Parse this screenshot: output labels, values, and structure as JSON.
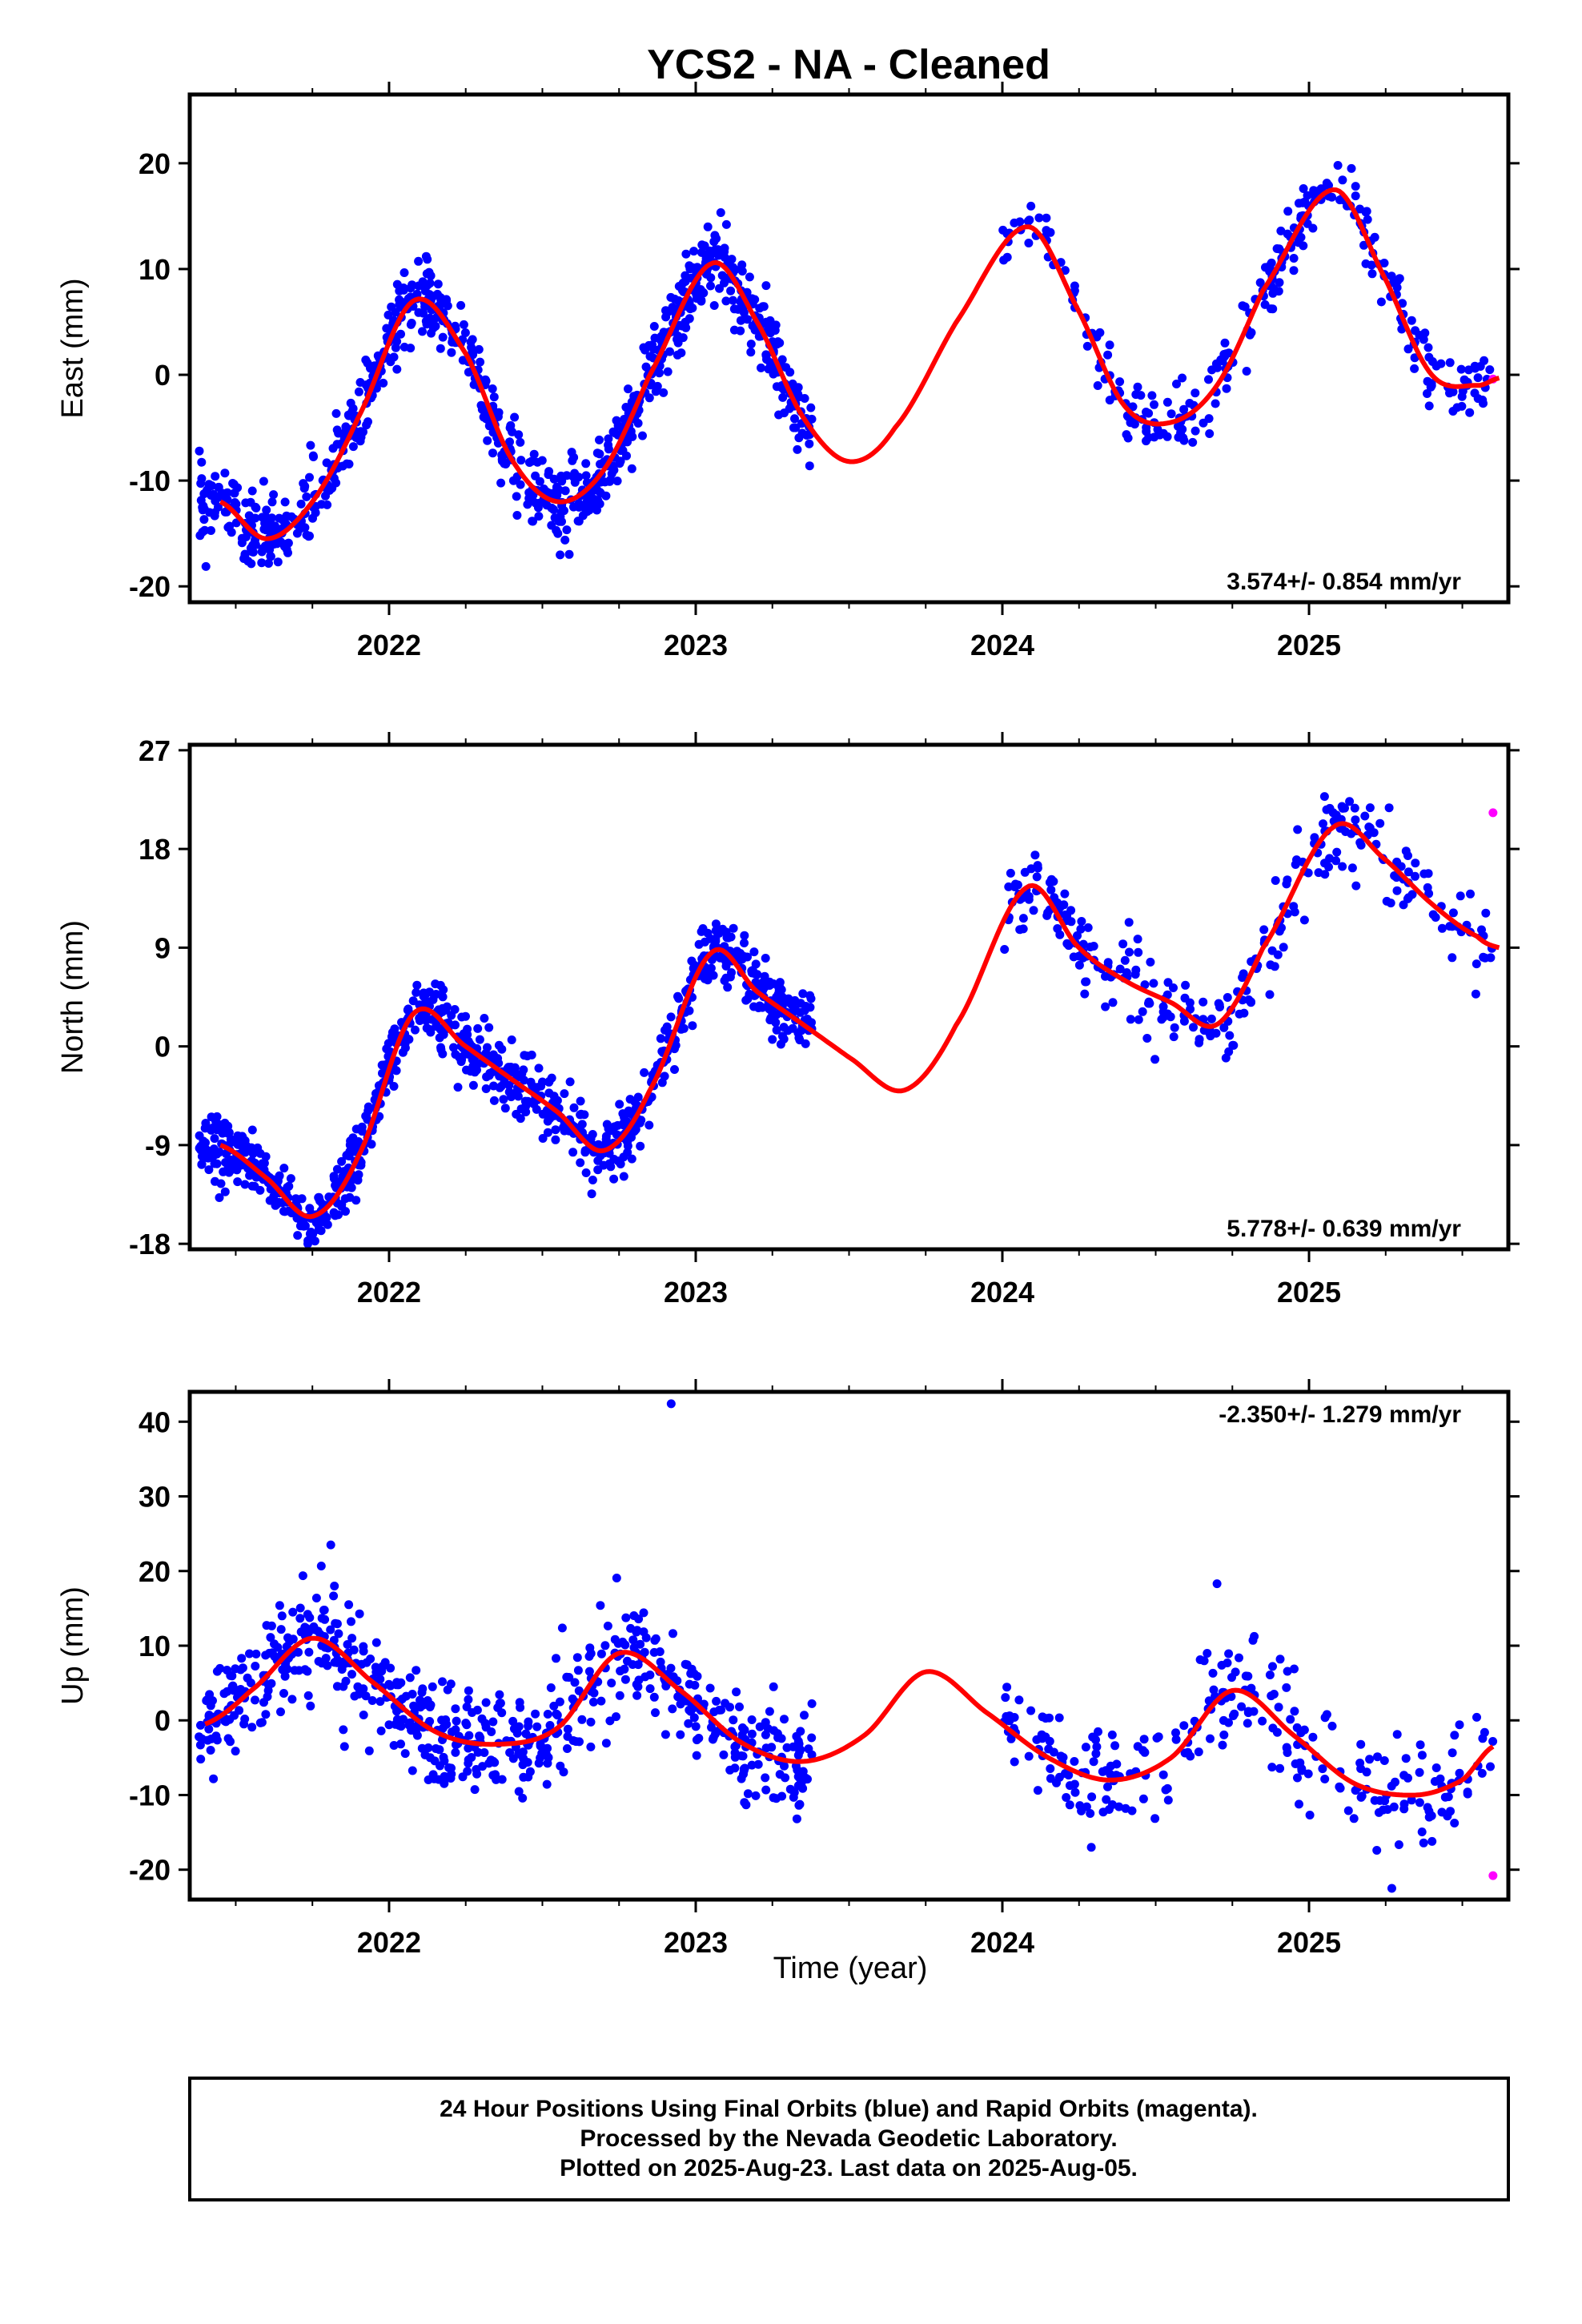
{
  "title": "YCS2  - NA - Cleaned",
  "xlabel": "Time (year)",
  "caption": [
    "24 Hour Positions Using Final Orbits (blue) and Rapid Orbits (magenta).",
    "Processed by the Nevada Geodetic Laboratory.",
    "Plotted on 2025-Aug-23. Last data on 2025-Aug-05."
  ],
  "colors": {
    "final": "#0000ff",
    "rapid": "#ff00ff",
    "model": "#ff0000",
    "frame": "#000000"
  },
  "chart_data": [
    {
      "type": "scatter",
      "panel": "east",
      "ylabel": "East (mm)",
      "xlim": [
        2021.35,
        2025.65
      ],
      "ylim": [
        -21.5,
        26.5
      ],
      "yticks": [
        -20,
        -10,
        0,
        10,
        20
      ],
      "xticks": [
        2022,
        2023,
        2024,
        2025
      ],
      "rate_label": "3.574+/- 0.854 mm/yr",
      "model": {
        "x": [
          2021.45,
          2021.6,
          2021.75,
          2021.9,
          2022.08,
          2022.25,
          2022.4,
          2022.55,
          2022.7,
          2022.85,
          2023.05,
          2023.2,
          2023.35,
          2023.5,
          2023.65,
          2023.85,
          2024.08,
          2024.25,
          2024.4,
          2024.55,
          2024.7,
          2024.85,
          2025.08,
          2025.25,
          2025.4,
          2025.55,
          2025.62
        ],
        "y": [
          -12,
          -15.5,
          -12,
          -4,
          7,
          2,
          -8,
          -12,
          -9,
          0,
          10.5,
          5,
          -4,
          -8.2,
          -5,
          5,
          14,
          6,
          -3,
          -4.5,
          -1,
          8,
          17.5,
          9,
          0,
          -1,
          -0.3
        ]
      },
      "segments": [
        {
          "x0": 2021.38,
          "x1": 2023.38,
          "spread": 2.2,
          "density": 900
        },
        {
          "x0": 2024.0,
          "x1": 2024.92,
          "spread": 2.0,
          "density": 140
        },
        {
          "x0": 2024.85,
          "x1": 2025.6,
          "spread": 2.0,
          "density": 140
        }
      ],
      "rapid_points": [
        [
          2025.6,
          -0.4
        ]
      ],
      "rate_position": "bottom-right"
    },
    {
      "type": "scatter",
      "panel": "north",
      "ylabel": "North (mm)",
      "xlim": [
        2021.35,
        2025.65
      ],
      "ylim": [
        -18.5,
        27.5
      ],
      "yticks": [
        -18,
        -9,
        0,
        9,
        18,
        27
      ],
      "xticks": [
        2022,
        2023,
        2024,
        2025
      ],
      "rate_label": "5.778+/- 0.639 mm/yr",
      "model": {
        "x": [
          2021.45,
          2021.6,
          2021.75,
          2021.9,
          2022.08,
          2022.25,
          2022.4,
          2022.55,
          2022.7,
          2022.85,
          2023.05,
          2023.2,
          2023.35,
          2023.5,
          2023.68,
          2023.85,
          2024.08,
          2024.25,
          2024.4,
          2024.55,
          2024.7,
          2024.85,
          2025.08,
          2025.25,
          2025.4,
          2025.55,
          2025.62
        ],
        "y": [
          -9,
          -12,
          -15.5,
          -10,
          3,
          0,
          -3,
          -6,
          -9.5,
          -4,
          8.5,
          5,
          2,
          -1,
          -4,
          2,
          14.5,
          9,
          6,
          4,
          2,
          9,
          20,
          17,
          13,
          10,
          9
        ]
      },
      "segments": [
        {
          "x0": 2021.38,
          "x1": 2023.38,
          "spread": 1.8,
          "density": 900
        },
        {
          "x0": 2024.0,
          "x1": 2024.72,
          "spread": 2.2,
          "density": 140
        },
        {
          "x0": 2024.72,
          "x1": 2025.6,
          "spread": 2.5,
          "density": 150
        }
      ],
      "rapid_points": [
        [
          2025.6,
          21.3
        ]
      ],
      "rate_position": "bottom-right"
    },
    {
      "type": "scatter",
      "panel": "up",
      "ylabel": "Up (mm)",
      "xlim": [
        2021.35,
        2025.65
      ],
      "ylim": [
        -24,
        44
      ],
      "yticks": [
        -20,
        -10,
        0,
        10,
        20,
        30,
        40
      ],
      "xticks": [
        2022,
        2023,
        2024,
        2025
      ],
      "rate_label": "-2.350+/- 1.279 mm/yr",
      "model": {
        "x": [
          2021.4,
          2021.55,
          2021.75,
          2021.95,
          2022.15,
          2022.35,
          2022.55,
          2022.75,
          2022.95,
          2023.15,
          2023.35,
          2023.55,
          2023.75,
          2023.95,
          2024.15,
          2024.35,
          2024.55,
          2024.75,
          2024.95,
          2025.15,
          2025.35,
          2025.5,
          2025.6
        ],
        "y": [
          -0.5,
          4,
          11,
          5,
          -1.5,
          -3.2,
          -1,
          9,
          4,
          -3,
          -5.5,
          -2,
          6.5,
          1,
          -5,
          -8,
          -5,
          4,
          -2,
          -8.5,
          -10,
          -8,
          -3.5
        ]
      },
      "segments": [
        {
          "x0": 2021.38,
          "x1": 2023.38,
          "spread": 4.5,
          "density": 650
        },
        {
          "x0": 2024.0,
          "x1": 2025.6,
          "spread": 4.5,
          "density": 260
        }
      ],
      "outliers": [
        [
          2022.92,
          42.4
        ],
        [
          2021.81,
          23.5
        ],
        [
          2024.7,
          18.3
        ],
        [
          2025.27,
          -22.5
        ],
        [
          2024.29,
          -17
        ]
      ],
      "rapid_points": [
        [
          2025.6,
          -20.8
        ]
      ],
      "rate_position": "top-right"
    }
  ]
}
